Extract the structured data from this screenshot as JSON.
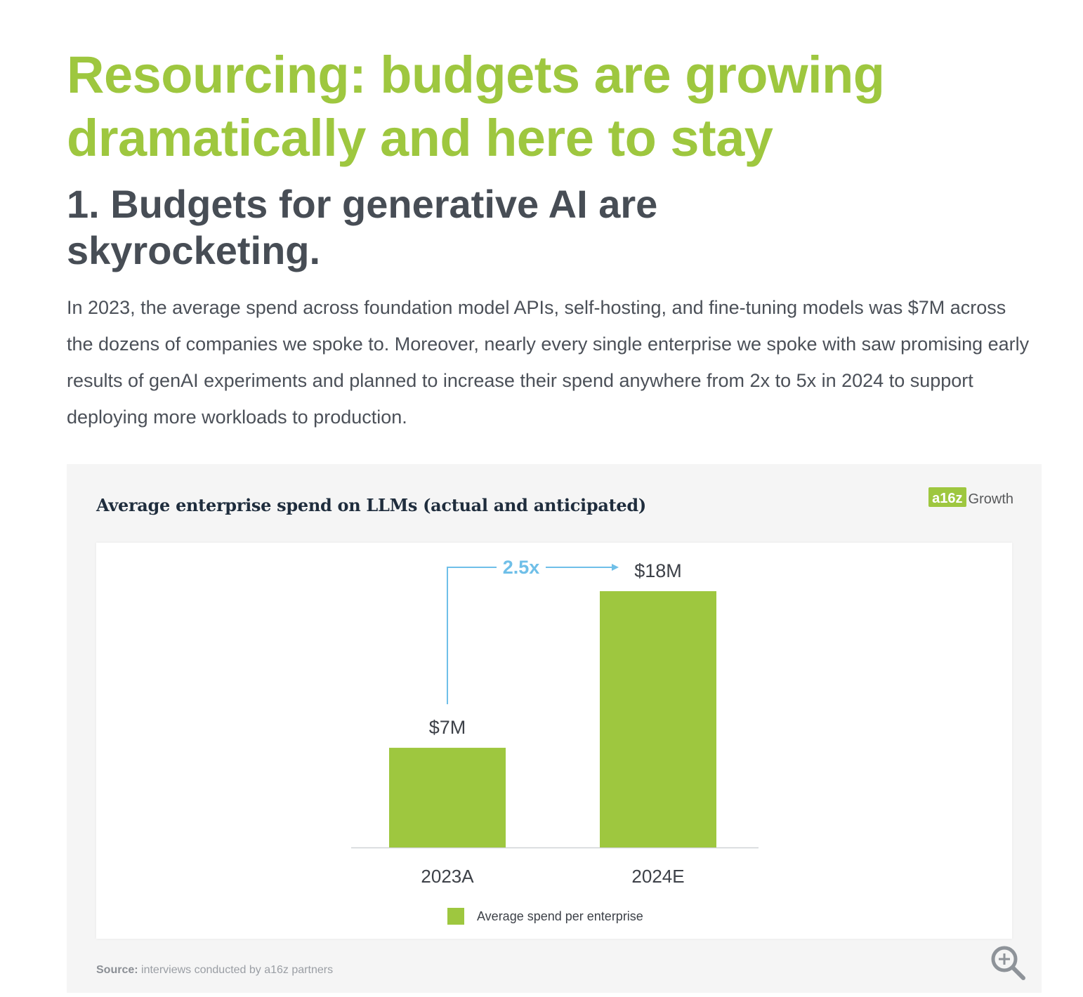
{
  "headline": "Resourcing: budgets are growing dramatically and here to stay",
  "subheadline": "1. Budgets for generative AI are skyrocketing.",
  "body_text": "In 2023, the average spend across foundation model APIs, self-hosting, and fine-tuning models was $7M across the dozens of companies we spoke to. Moreover, nearly every single enterprise we spoke with saw promising early results of genAI experiments and planned to increase their spend anywhere from 2x to 5x in 2024 to support deploying more workloads to production.",
  "brand": {
    "badge": "a16z",
    "word": "Growth"
  },
  "source": {
    "label": "Source:",
    "text": "interviews conducted by a16z partners"
  },
  "icons": {
    "zoom": "zoom-in-icon"
  },
  "colors": {
    "accent": "#9ec73f",
    "arrow": "#6fbfe8",
    "heading": "#474d55"
  },
  "chart_data": {
    "type": "bar",
    "title": "Average enterprise spend on LLMs (actual and anticipated)",
    "categories": [
      "2023A",
      "2024E"
    ],
    "series": [
      {
        "name": "Average spend per enterprise",
        "values": [
          7,
          18
        ]
      }
    ],
    "data_labels": [
      "$7M",
      "$18M"
    ],
    "annotation": "2.5x",
    "ylim": [
      0,
      18
    ],
    "grid": false,
    "legend_position": "bottom-center"
  }
}
